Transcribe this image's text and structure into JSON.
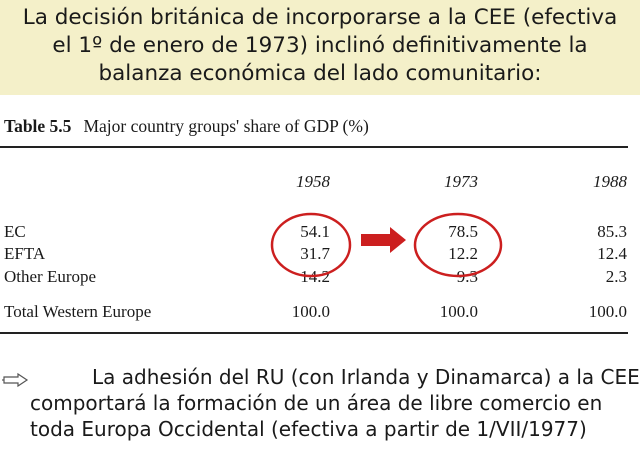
{
  "header": {
    "lines": [
      "La decisión británica de incorporarse a la CEE (efectiva",
      "el 1º de enero de 1973) inclinó definitivamente la",
      "balanza económica del lado comunitario:"
    ],
    "background_color": "#f4f0c9"
  },
  "table": {
    "number": "Table 5.5",
    "caption": "Major country groups' share of GDP (%)",
    "years": [
      "1958",
      "1973",
      "1988"
    ],
    "rows": [
      {
        "label": "EC",
        "values": [
          "54.1",
          "78.5",
          "85.3"
        ]
      },
      {
        "label": "EFTA",
        "values": [
          "31.7",
          "12.2",
          "12.4"
        ]
      },
      {
        "label": "Other Europe",
        "values": [
          "14.2",
          "9.3",
          "2.3"
        ]
      },
      {
        "label": "Total Western Europe",
        "values": [
          "100.0",
          "100.0",
          "100.0"
        ]
      }
    ]
  },
  "annotations": {
    "circle_color": "#cc1f1f",
    "arrow_color": "#cc1f1f",
    "arrow_icon": "right-arrow-icon"
  },
  "footer": {
    "bullet_icon": "hollow-right-arrow-icon",
    "lines": [
      "La adhesión del RU (con Irlanda y Dinamarca) a la CEE",
      "comportará la formación de un área de libre comercio en",
      "toda Europa Occidental (efectiva a partir de 1/VII/1977)"
    ]
  }
}
